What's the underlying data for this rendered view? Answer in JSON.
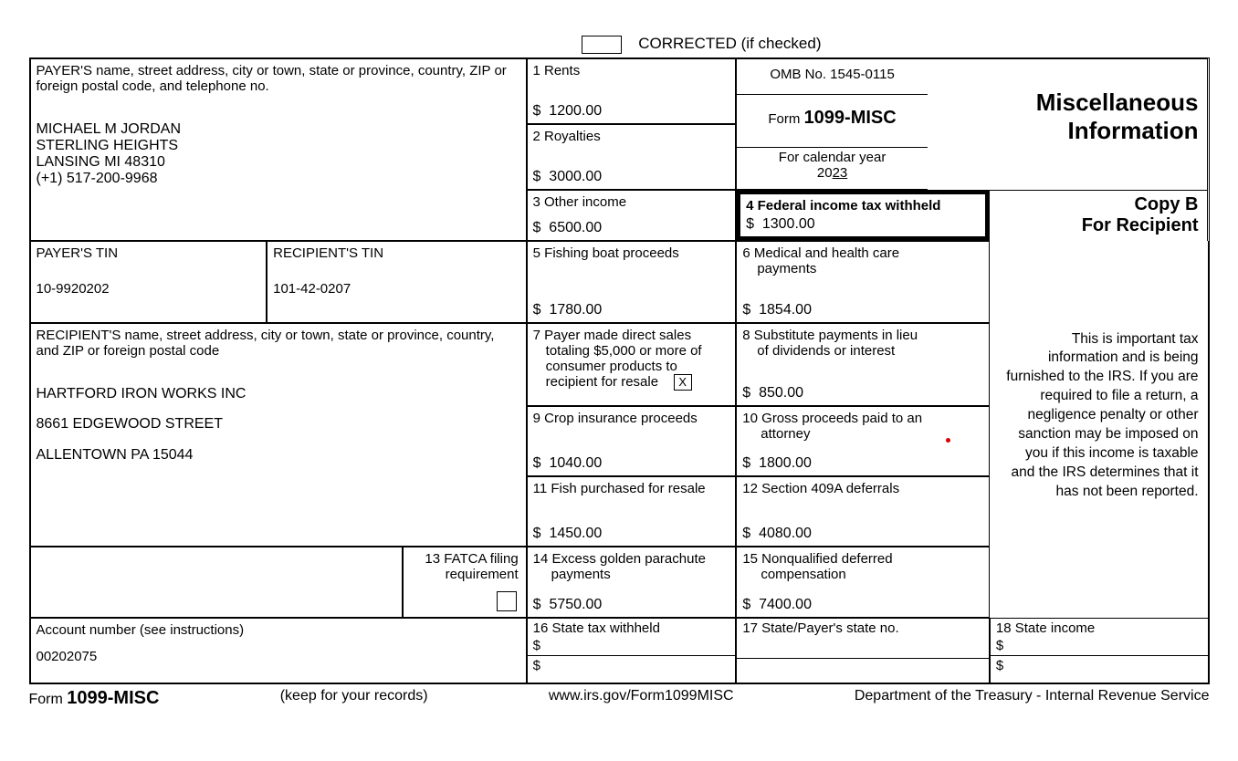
{
  "header": {
    "corrected_label": "CORRECTED (if checked)"
  },
  "payer": {
    "label": "PAYER'S name, street address, city or town, state or province, country, ZIP or foreign postal code, and telephone no.",
    "name": "MICHAEL M JORDAN",
    "line2": "STERLING HEIGHTS",
    "line3": "LANSING MI 48310",
    "phone": "(+1) 517-200-9968"
  },
  "payer_tin": {
    "label": "PAYER'S TIN",
    "value": "10-9920202"
  },
  "recipient_tin": {
    "label": "RECIPIENT'S TIN",
    "value": "101-42-0207"
  },
  "recipient": {
    "label": "RECIPIENT'S name, street address, city or town, state or province, country, and ZIP or foreign postal code",
    "name": "HARTFORD IRON WORKS INC",
    "line2": "8661 EDGEWOOD STREET",
    "line3": "ALLENTOWN PA 15044"
  },
  "account": {
    "label": "Account number (see instructions)",
    "value": "00202075"
  },
  "box1": {
    "label": "1 Rents",
    "value": "1200.00"
  },
  "box2": {
    "label": "2 Royalties",
    "value": "3000.00"
  },
  "box3": {
    "label": "3 Other income",
    "value": "6500.00"
  },
  "box4": {
    "label": "4 Federal income tax withheld",
    "value": "1300.00"
  },
  "box5": {
    "label": "5 Fishing boat proceeds",
    "value": "1780.00"
  },
  "box6": {
    "label": "6 Medical and health care",
    "label2": "payments",
    "value": "1854.00"
  },
  "box7": {
    "label": "7 Payer made direct sales",
    "label2": "totaling $5,000 or more of",
    "label3": "consumer products to",
    "label4": "recipient for resale",
    "checked": "X"
  },
  "box8": {
    "label": "8 Substitute payments in lieu",
    "label2": "of dividends or interest",
    "value": "850.00"
  },
  "box9": {
    "label": "9  Crop insurance proceeds",
    "value": "1040.00"
  },
  "box10": {
    "label": "10 Gross proceeds paid to an",
    "label2": "attorney",
    "value": "1800.00"
  },
  "box11": {
    "label": "11 Fish purchased for resale",
    "value": "1450.00"
  },
  "box12": {
    "label": "12 Section 409A deferrals",
    "value": "4080.00"
  },
  "box13": {
    "label": "13 FATCA filing",
    "label2": "requirement"
  },
  "box14": {
    "label": "14 Excess golden parachute",
    "label2": "payments",
    "value": "5750.00"
  },
  "box15": {
    "label": "15 Nonqualified deferred",
    "label2": "compensation",
    "value": "7400.00"
  },
  "box16": {
    "label": "16 State tax withheld"
  },
  "box17": {
    "label": "17 State/Payer's state no."
  },
  "box18": {
    "label": "18 State income"
  },
  "omb": {
    "label": "OMB No. 1545-0115"
  },
  "form_title": {
    "prefix": "Form ",
    "name": "1099-MISC"
  },
  "calendar": {
    "label": "For calendar year",
    "year_prefix": "20",
    "year_suffix": "23"
  },
  "right_side": {
    "title1": "Miscellaneous",
    "title2": "Information",
    "copy": "Copy B",
    "for": "For Recipient",
    "notice": "This is important tax information and is being furnished to the IRS. If you are required to file a return, a negligence penalty or other sanction may be imposed on you if this income is taxable and the IRS determines that it has not been reported."
  },
  "footer": {
    "form": "Form",
    "form_name": "1099-MISC",
    "keep": "(keep for your records)",
    "url": "www.irs.gov/Form1099MISC",
    "dept": "Department of the Treasury - Internal Revenue Service"
  },
  "style": {
    "text_color": "#000000",
    "background": "#ffffff",
    "border_color": "#000000",
    "heavy_border_width": 5
  }
}
